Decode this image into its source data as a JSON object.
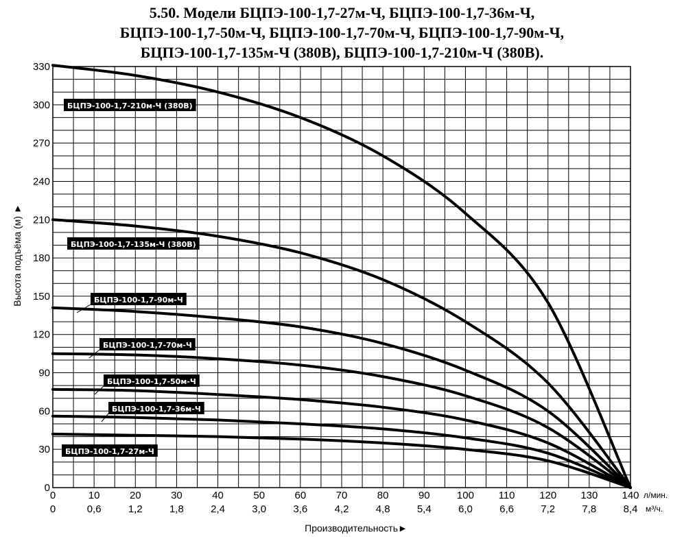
{
  "title_lines": [
    "5.50. Модели БЦПЭ-100-1,7-27м-Ч, БЦПЭ-100-1,7-36м-Ч,",
    "БЦПЭ-100-1,7-50м-Ч, БЦПЭ-100-1,7-70м-Ч, БЦПЭ-100-1,7-90м-Ч,",
    "БЦПЭ-100-1,7-135м-Ч (380В), БЦПЭ-100-1,7-210м-Ч (380В)."
  ],
  "chart_data": {
    "type": "line",
    "title": "5.50. Модели БЦПЭ-100-1,7-27м-Ч, БЦПЭ-100-1,7-36м-Ч, БЦПЭ-100-1,7-50м-Ч, БЦПЭ-100-1,7-70м-Ч, БЦПЭ-100-1,7-90м-Ч, БЦПЭ-100-1,7-135м-Ч (380В), БЦПЭ-100-1,7-210м-Ч (380В).",
    "xlabel": "Производительность►",
    "ylabel": "Высота подъёма (м) ►",
    "x_unit_primary": "л/мин.",
    "x_unit_secondary": "м³/ч.",
    "xlim": [
      0,
      140
    ],
    "ylim": [
      0,
      330
    ],
    "grid": true,
    "x_ticks": [
      0,
      10,
      20,
      30,
      40,
      50,
      60,
      70,
      80,
      90,
      100,
      110,
      120,
      130,
      140
    ],
    "x_ticks_secondary": [
      "0",
      "0,6",
      "1,2",
      "1,8",
      "2,4",
      "3,0",
      "3,6",
      "4,2",
      "4,8",
      "5,4",
      "6,0",
      "6,6",
      "7,2",
      "7,8",
      "8,4"
    ],
    "y_ticks": [
      0,
      30,
      60,
      90,
      120,
      150,
      180,
      210,
      240,
      270,
      300,
      330
    ],
    "series": [
      {
        "name": "БЦПЭ-100-1,7-210м-Ч (380В)",
        "x": [
          0,
          20,
          40,
          60,
          80,
          100,
          120,
          140
        ],
        "y": [
          331,
          323,
          310,
          290,
          260,
          215,
          145,
          0
        ]
      },
      {
        "name": "БЦПЭ-100-1,7-135м-Ч (380В)",
        "x": [
          0,
          20,
          40,
          60,
          80,
          100,
          120,
          140
        ],
        "y": [
          210,
          205,
          197,
          184,
          163,
          130,
          82,
          0
        ]
      },
      {
        "name": "БЦПЭ-100-1,7-90м-Ч",
        "x": [
          0,
          20,
          40,
          60,
          80,
          100,
          120,
          140
        ],
        "y": [
          141,
          138,
          133,
          126,
          113,
          92,
          60,
          0
        ]
      },
      {
        "name": "БЦПЭ-100-1,7-70м-Ч",
        "x": [
          0,
          20,
          40,
          60,
          80,
          100,
          120,
          140
        ],
        "y": [
          105,
          104,
          101,
          96,
          87,
          72,
          47,
          0
        ]
      },
      {
        "name": "БЦПЭ-100-1,7-50м-Ч",
        "x": [
          0,
          20,
          40,
          60,
          80,
          100,
          120,
          140
        ],
        "y": [
          77,
          76,
          73,
          69,
          63,
          53,
          35,
          0
        ]
      },
      {
        "name": "БЦПЭ-100-1,7-36м-Ч",
        "x": [
          0,
          20,
          40,
          60,
          80,
          100,
          120,
          140
        ],
        "y": [
          56,
          55,
          53,
          50,
          46,
          39,
          27,
          0
        ]
      },
      {
        "name": "БЦПЭ-100-1,7-27м-Ч",
        "x": [
          0,
          20,
          40,
          60,
          80,
          100,
          120,
          140
        ],
        "y": [
          42,
          41,
          40,
          38,
          35,
          30,
          21,
          0
        ]
      }
    ]
  }
}
